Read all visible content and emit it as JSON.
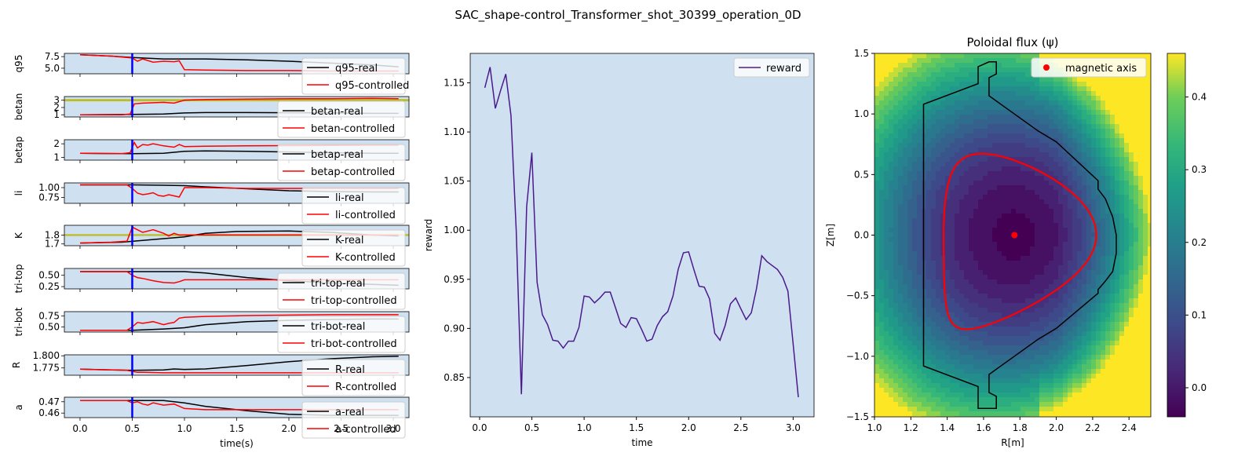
{
  "figure_title": "SAC_shape-control_Transformer_shot_30399_operation_0D",
  "colors": {
    "axes_bg": "#cfe0f0",
    "real": "#000000",
    "controlled": "#ff0000",
    "marker_line": "#0000ff",
    "target_band": "#bcbd22",
    "reward": "#4b1a8c",
    "contour_line": "#ff0000",
    "wall": "#000000",
    "axis_marker": "#ff0000"
  },
  "chart_data": [
    {
      "type": "line",
      "panel": "q95",
      "ylabel": "q95",
      "ylim": [
        3.8,
        8.2
      ],
      "yticks": [
        5.0,
        7.5
      ],
      "ytick_labels": [
        "5.0",
        "7.5"
      ],
      "xlim": [
        -0.15,
        3.15
      ],
      "marker_x": 0.5,
      "series": [
        {
          "name": "q95-real",
          "x": [
            0,
            0.3,
            0.5,
            0.8,
            1.2,
            1.6,
            2.0,
            2.4,
            2.8,
            3.05
          ],
          "values": [
            7.9,
            7.6,
            7.3,
            7.0,
            7.0,
            6.8,
            6.5,
            6.1,
            5.7,
            5.3
          ]
        },
        {
          "name": "q95-controlled",
          "x": [
            0,
            0.3,
            0.45,
            0.5,
            0.55,
            0.6,
            0.7,
            0.8,
            0.9,
            0.95,
            1.0,
            1.2,
            1.6,
            2.0,
            2.4,
            2.8,
            3.05
          ],
          "values": [
            7.9,
            7.6,
            7.3,
            7.2,
            6.5,
            7.0,
            6.3,
            6.5,
            6.4,
            6.6,
            4.7,
            4.6,
            4.5,
            4.5,
            4.4,
            4.4,
            4.4
          ]
        }
      ]
    },
    {
      "type": "line",
      "panel": "betan",
      "ylabel": "betan",
      "ylim": [
        0.7,
        3.5
      ],
      "yticks": [
        1,
        2,
        3
      ],
      "ytick_labels": [
        "1",
        "2",
        "3"
      ],
      "xlim": [
        -0.15,
        3.15
      ],
      "marker_x": 0.5,
      "target_band": [
        2.85,
        3.15
      ],
      "series": [
        {
          "name": "betan-real",
          "x": [
            0,
            0.5,
            0.8,
            1.0,
            1.2,
            1.6,
            2.0,
            2.4,
            2.8,
            3.05
          ],
          "values": [
            1.0,
            1.05,
            1.1,
            1.25,
            1.3,
            1.3,
            1.28,
            1.25,
            1.2,
            1.2
          ]
        },
        {
          "name": "betan-controlled",
          "x": [
            0,
            0.4,
            0.48,
            0.52,
            0.6,
            0.8,
            0.9,
            0.95,
            1.0,
            1.2,
            1.6,
            2.0,
            2.4,
            2.8,
            3.05
          ],
          "values": [
            1.0,
            1.0,
            1.1,
            2.5,
            2.6,
            2.7,
            2.6,
            2.8,
            3.0,
            3.1,
            3.15,
            3.2,
            3.2,
            3.25,
            3.2
          ]
        }
      ]
    },
    {
      "type": "line",
      "panel": "betap",
      "ylabel": "betap",
      "ylim": [
        0.8,
        2.3
      ],
      "yticks": [
        1,
        2
      ],
      "ytick_labels": [
        "1",
        "2"
      ],
      "xlim": [
        -0.15,
        3.15
      ],
      "marker_x": 0.5,
      "series": [
        {
          "name": "betap-real",
          "x": [
            0,
            0.5,
            0.8,
            1.0,
            1.2,
            1.6,
            2.0,
            2.4,
            2.8,
            3.05
          ],
          "values": [
            1.3,
            1.28,
            1.3,
            1.45,
            1.48,
            1.45,
            1.4,
            1.35,
            1.3,
            1.3
          ]
        },
        {
          "name": "betap-controlled",
          "x": [
            0,
            0.4,
            0.48,
            0.52,
            0.55,
            0.6,
            0.65,
            0.7,
            0.8,
            0.9,
            0.95,
            1.0,
            1.2,
            1.6,
            2.0,
            2.4,
            2.8,
            3.05
          ],
          "values": [
            1.3,
            1.28,
            1.35,
            2.1,
            1.7,
            1.95,
            1.9,
            2.0,
            1.85,
            1.75,
            1.95,
            1.8,
            1.82,
            1.85,
            1.87,
            1.88,
            1.9,
            1.9
          ]
        }
      ]
    },
    {
      "type": "line",
      "panel": "li",
      "ylabel": "li",
      "ylim": [
        0.6,
        1.12
      ],
      "yticks": [
        0.75,
        1.0
      ],
      "ytick_labels": [
        "0.75",
        "1.00"
      ],
      "xlim": [
        -0.15,
        3.15
      ],
      "marker_x": 0.5,
      "series": [
        {
          "name": "li-real",
          "x": [
            0,
            0.5,
            0.8,
            1.0,
            1.2,
            1.6,
            2.0,
            2.4,
            2.8,
            3.05
          ],
          "values": [
            1.07,
            1.07,
            1.06,
            1.05,
            1.02,
            0.97,
            0.92,
            0.9,
            0.89,
            0.89
          ]
        },
        {
          "name": "li-controlled",
          "x": [
            0,
            0.45,
            0.5,
            0.55,
            0.6,
            0.65,
            0.7,
            0.75,
            0.8,
            0.85,
            0.9,
            0.95,
            1.0,
            1.2,
            1.6,
            2.0,
            2.4,
            2.8,
            3.05
          ],
          "values": [
            1.07,
            1.07,
            0.98,
            0.86,
            0.82,
            0.84,
            0.87,
            0.8,
            0.78,
            0.82,
            0.79,
            0.76,
            1.0,
            1.0,
            0.98,
            0.98,
            0.98,
            0.98,
            0.98
          ]
        }
      ]
    },
    {
      "type": "line",
      "panel": "K",
      "ylabel": "K",
      "ylim": [
        1.68,
        1.91
      ],
      "yticks": [
        1.7,
        1.8
      ],
      "ytick_labels": [
        "1.7",
        "1.8"
      ],
      "xlim": [
        -0.15,
        3.15
      ],
      "marker_x": 0.5,
      "target_band": [
        1.79,
        1.81
      ],
      "series": [
        {
          "name": "K-real",
          "x": [
            0,
            0.4,
            0.6,
            0.8,
            1.0,
            1.2,
            1.5,
            2.0,
            2.4,
            2.8,
            3.05
          ],
          "values": [
            1.71,
            1.72,
            1.74,
            1.76,
            1.78,
            1.82,
            1.84,
            1.845,
            1.83,
            1.8,
            1.79
          ]
        },
        {
          "name": "K-controlled",
          "x": [
            0,
            0.3,
            0.45,
            0.5,
            0.55,
            0.6,
            0.7,
            0.8,
            0.85,
            0.9,
            0.95,
            1.0,
            1.2,
            1.6,
            2.0,
            2.4,
            2.8,
            3.05
          ],
          "values": [
            1.71,
            1.72,
            1.73,
            1.89,
            1.86,
            1.83,
            1.86,
            1.82,
            1.79,
            1.82,
            1.8,
            1.8,
            1.8,
            1.8,
            1.8,
            1.8,
            1.8,
            1.8
          ]
        }
      ]
    },
    {
      "type": "line",
      "panel": "tri-top",
      "ylabel": "tri-top",
      "ylim": [
        0.2,
        0.65
      ],
      "yticks": [
        0.25,
        0.5
      ],
      "ytick_labels": [
        "0.25",
        "0.50"
      ],
      "xlim": [
        -0.15,
        3.15
      ],
      "marker_x": 0.5,
      "series": [
        {
          "name": "tri-top-real",
          "x": [
            0,
            0.5,
            1.0,
            1.2,
            1.6,
            2.0,
            2.4,
            2.8,
            3.05
          ],
          "values": [
            0.58,
            0.58,
            0.58,
            0.55,
            0.45,
            0.38,
            0.33,
            0.3,
            0.28
          ]
        },
        {
          "name": "tri-top-controlled",
          "x": [
            0,
            0.45,
            0.5,
            0.55,
            0.6,
            0.7,
            0.8,
            0.9,
            0.95,
            1.0,
            1.2,
            1.6,
            2.0,
            2.4,
            2.8,
            3.05
          ],
          "values": [
            0.58,
            0.58,
            0.5,
            0.45,
            0.43,
            0.38,
            0.34,
            0.33,
            0.36,
            0.4,
            0.4,
            0.4,
            0.4,
            0.4,
            0.4,
            0.4
          ]
        }
      ]
    },
    {
      "type": "line",
      "panel": "tri-bot",
      "ylabel": "tri-bot",
      "ylim": [
        0.38,
        0.85
      ],
      "yticks": [
        0.5,
        0.75
      ],
      "ytick_labels": [
        "0.50",
        "0.75"
      ],
      "xlim": [
        -0.15,
        3.15
      ],
      "marker_x": 0.5,
      "series": [
        {
          "name": "tri-bot-real",
          "x": [
            0,
            0.5,
            0.8,
            1.0,
            1.2,
            1.6,
            2.0,
            2.4,
            2.8,
            3.05
          ],
          "values": [
            0.42,
            0.42,
            0.45,
            0.48,
            0.55,
            0.62,
            0.65,
            0.67,
            0.68,
            0.68
          ]
        },
        {
          "name": "tri-bot-controlled",
          "x": [
            0,
            0.45,
            0.5,
            0.55,
            0.6,
            0.7,
            0.8,
            0.85,
            0.9,
            0.95,
            1.0,
            1.2,
            1.6,
            2.0,
            2.4,
            2.8,
            3.05
          ],
          "values": [
            0.42,
            0.42,
            0.5,
            0.6,
            0.58,
            0.62,
            0.55,
            0.58,
            0.6,
            0.7,
            0.72,
            0.74,
            0.76,
            0.77,
            0.78,
            0.78,
            0.78
          ]
        }
      ]
    },
    {
      "type": "line",
      "panel": "R",
      "ylabel": "R",
      "ylim": [
        1.76,
        1.802
      ],
      "yticks": [
        1.775,
        1.8
      ],
      "ytick_labels": [
        "1.775",
        "1.800"
      ],
      "xlim": [
        -0.15,
        3.15
      ],
      "marker_x": 0.5,
      "series": [
        {
          "name": "R-real",
          "x": [
            0,
            0.5,
            0.8,
            0.9,
            1.0,
            1.2,
            1.6,
            2.0,
            2.4,
            2.8,
            3.05
          ],
          "values": [
            1.7725,
            1.77,
            1.771,
            1.773,
            1.772,
            1.773,
            1.78,
            1.788,
            1.794,
            1.798,
            1.799
          ]
        },
        {
          "name": "R-controlled",
          "x": [
            0,
            0.45,
            0.5,
            0.55,
            0.6,
            0.8,
            1.0,
            1.2,
            1.6,
            2.0,
            2.4,
            2.8,
            3.05
          ],
          "values": [
            1.7725,
            1.77,
            1.768,
            1.766,
            1.766,
            1.765,
            1.765,
            1.765,
            1.765,
            1.765,
            1.765,
            1.765,
            1.765
          ]
        }
      ]
    },
    {
      "type": "line",
      "panel": "a",
      "ylabel": "a",
      "ylim": [
        0.456,
        0.474
      ],
      "yticks": [
        0.46,
        0.47
      ],
      "ytick_labels": [
        "0.46",
        "0.47"
      ],
      "xlim": [
        -0.15,
        3.15
      ],
      "marker_x": 0.5,
      "xticks": [
        0.0,
        0.5,
        1.0,
        1.5,
        2.0,
        2.5,
        3.0
      ],
      "xtick_labels": [
        "0.0",
        "0.5",
        "1.0",
        "1.5",
        "2.0",
        "2.5",
        "3.0"
      ],
      "xlabel": "time(s)",
      "series": [
        {
          "name": "a-real",
          "x": [
            0,
            0.5,
            0.8,
            1.0,
            1.2,
            1.6,
            2.0,
            2.4,
            2.8,
            3.05
          ],
          "values": [
            0.471,
            0.471,
            0.471,
            0.469,
            0.466,
            0.462,
            0.459,
            0.458,
            0.458,
            0.458
          ]
        },
        {
          "name": "a-controlled",
          "x": [
            0,
            0.45,
            0.5,
            0.55,
            0.6,
            0.65,
            0.7,
            0.8,
            0.9,
            1.0,
            1.2,
            1.6,
            2.0,
            2.4,
            2.8,
            3.05
          ],
          "values": [
            0.471,
            0.471,
            0.469,
            0.47,
            0.468,
            0.467,
            0.469,
            0.467,
            0.468,
            0.464,
            0.463,
            0.463,
            0.463,
            0.463,
            0.463,
            0.463
          ]
        }
      ]
    },
    {
      "type": "line",
      "panel": "reward",
      "xlabel": "time",
      "ylabel": "reward",
      "xlim": [
        -0.09,
        3.2
      ],
      "ylim": [
        0.81,
        1.18
      ],
      "xticks": [
        0.0,
        0.5,
        1.0,
        1.5,
        2.0,
        2.5,
        3.0
      ],
      "xtick_labels": [
        "0.0",
        "0.5",
        "1.0",
        "1.5",
        "2.0",
        "2.5",
        "3.0"
      ],
      "yticks": [
        0.85,
        0.9,
        0.95,
        1.0,
        1.05,
        1.1,
        1.15
      ],
      "ytick_labels": [
        "0.85",
        "0.90",
        "0.95",
        "1.00",
        "1.05",
        "1.10",
        "1.15"
      ],
      "series": [
        {
          "name": "reward",
          "x": [
            0.05,
            0.1,
            0.15,
            0.2,
            0.25,
            0.3,
            0.35,
            0.4,
            0.45,
            0.5,
            0.55,
            0.6,
            0.65,
            0.7,
            0.75,
            0.8,
            0.85,
            0.9,
            0.95,
            1.0,
            1.05,
            1.1,
            1.15,
            1.2,
            1.25,
            1.3,
            1.35,
            1.4,
            1.45,
            1.5,
            1.55,
            1.6,
            1.65,
            1.7,
            1.75,
            1.8,
            1.85,
            1.9,
            1.95,
            2.0,
            2.05,
            2.1,
            2.15,
            2.2,
            2.25,
            2.3,
            2.35,
            2.4,
            2.45,
            2.5,
            2.55,
            2.6,
            2.65,
            2.7,
            2.75,
            2.8,
            2.85,
            2.9,
            2.95,
            3.0,
            3.05
          ],
          "values": [
            1.145,
            1.166,
            1.124,
            1.142,
            1.159,
            1.117,
            1.0,
            0.833,
            1.024,
            1.079,
            0.947,
            0.914,
            0.904,
            0.888,
            0.887,
            0.88,
            0.887,
            0.887,
            0.901,
            0.933,
            0.932,
            0.926,
            0.931,
            0.937,
            0.937,
            0.921,
            0.905,
            0.901,
            0.911,
            0.91,
            0.899,
            0.887,
            0.889,
            0.903,
            0.912,
            0.917,
            0.933,
            0.96,
            0.977,
            0.978,
            0.96,
            0.943,
            0.942,
            0.93,
            0.895,
            0.888,
            0.903,
            0.925,
            0.931,
            0.92,
            0.909,
            0.916,
            0.941,
            0.974,
            0.968,
            0.964,
            0.96,
            0.952,
            0.938,
            0.884,
            0.83
          ]
        }
      ]
    },
    {
      "type": "heatmap",
      "panel": "poloidal-flux",
      "title": "Poloidal flux (ψ)",
      "xlabel": "R[m]",
      "ylabel": "Z[m]",
      "xlim": [
        1.0,
        2.52
      ],
      "ylim": [
        -1.5,
        1.5
      ],
      "xticks": [
        1.0,
        1.2,
        1.4,
        1.6,
        1.8,
        2.0,
        2.2,
        2.4
      ],
      "xtick_labels": [
        "1.0",
        "1.2",
        "1.4",
        "1.6",
        "1.8",
        "2.0",
        "2.2",
        "2.4"
      ],
      "yticks": [
        -1.5,
        -1.0,
        -0.5,
        0.0,
        0.5,
        1.0,
        1.5
      ],
      "ytick_labels": [
        "−1.5",
        "−1.0",
        "−0.5",
        "0.0",
        "0.5",
        "1.0",
        "1.5"
      ],
      "colorbar_range": [
        -0.04,
        0.46
      ],
      "colorbar_ticks": [
        0.0,
        0.1,
        0.2,
        0.3,
        0.4
      ],
      "colorbar_tick_labels": [
        "0.0",
        "0.1",
        "0.2",
        "0.3",
        "0.4"
      ],
      "colormap": "viridis",
      "magnetic_axis": {
        "label": "magnetic axis",
        "R": 1.77,
        "Z": 0.0
      },
      "wall": {
        "R": [
          1.27,
          1.27,
          1.57,
          1.57,
          1.63,
          1.67,
          1.67,
          1.63,
          1.63,
          1.9,
          2.0,
          2.23,
          2.23,
          2.27,
          2.31,
          2.33,
          2.33,
          2.31,
          2.27,
          2.23,
          2.23,
          2.0,
          1.9,
          1.63,
          1.63,
          1.67,
          1.67,
          1.57,
          1.57,
          1.27
        ],
        "Z": [
          -1.08,
          1.08,
          1.25,
          1.39,
          1.43,
          1.43,
          1.33,
          1.3,
          1.15,
          0.86,
          0.77,
          0.45,
          0.38,
          0.3,
          0.15,
          0.0,
          -0.15,
          -0.3,
          -0.38,
          -0.45,
          -0.48,
          -0.77,
          -0.86,
          -1.15,
          -1.3,
          -1.33,
          -1.43,
          -1.43,
          -1.25,
          -1.08
        ]
      },
      "lcfs": {
        "R0": 1.8,
        "a": 0.42,
        "kappa_top": 1.6,
        "kappa_bot": 1.85,
        "delta_top": 0.5,
        "delta_bot": 0.7
      }
    }
  ]
}
